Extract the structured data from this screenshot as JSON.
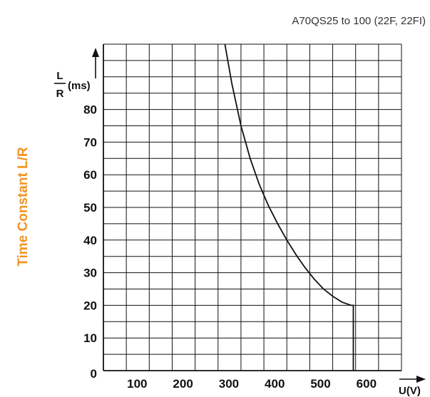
{
  "chart_data": {
    "type": "line",
    "title": "A70QS25 to 100 (22F, 22FI)",
    "side_label": "Time Constant L/R",
    "ylabel": {
      "fraction_top": "L",
      "fraction_bottom": "R",
      "unit": "(ms)"
    },
    "xlabel": "U(V)",
    "x_ticks": [
      100,
      200,
      300,
      400,
      500,
      600
    ],
    "y_ticks": [
      0,
      10,
      20,
      30,
      40,
      50,
      60,
      70,
      80
    ],
    "xlim": [
      0,
      650
    ],
    "ylim": [
      0,
      100
    ],
    "grid": true,
    "series": [
      {
        "x": [
          265,
          280,
          300,
          320,
          340,
          360,
          380,
          400,
          420,
          440,
          460,
          480,
          500,
          520,
          540,
          545,
          545
        ],
        "y": [
          100,
          88,
          75,
          65,
          57,
          50.5,
          45,
          40,
          35.5,
          31.5,
          28,
          25,
          22.8,
          21,
          20,
          20,
          0
        ]
      }
    ],
    "colors": {
      "line": "#111111",
      "grid": "#111111",
      "side_label": "#f39321",
      "title": "#333333"
    }
  }
}
